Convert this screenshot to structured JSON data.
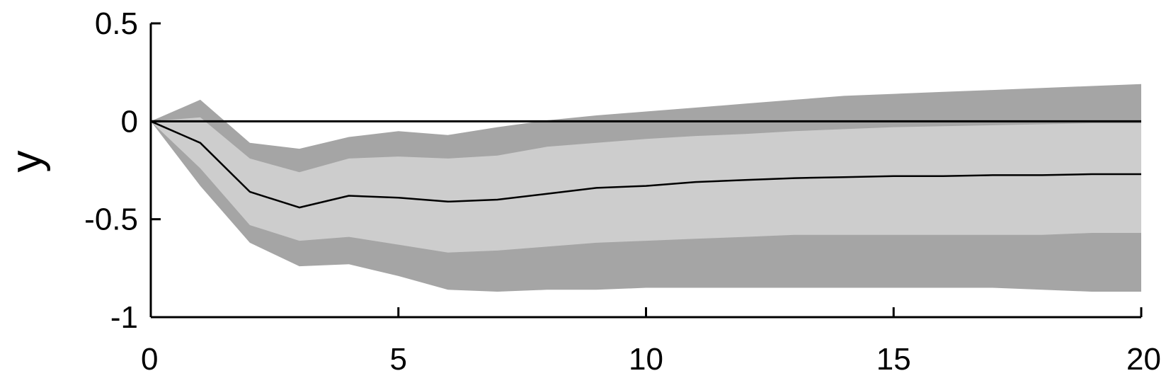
{
  "chart_data": {
    "type": "area",
    "title": "",
    "xlabel": "",
    "ylabel": "y",
    "xlim": [
      0,
      20
    ],
    "ylim": [
      -1,
      0.5
    ],
    "xticks": [
      0,
      5,
      10,
      15,
      20
    ],
    "yticks": [
      0.5,
      0,
      -0.5,
      -1
    ],
    "xtick_labels": [
      "0",
      "5",
      "10",
      "15",
      "20"
    ],
    "ytick_labels": [
      "0.5",
      "0",
      "-0.5",
      "-1"
    ],
    "grid": false,
    "legend": "none",
    "x": [
      0,
      1,
      2,
      3,
      4,
      5,
      6,
      7,
      8,
      9,
      10,
      11,
      12,
      13,
      14,
      15,
      16,
      17,
      18,
      19,
      20
    ],
    "series": [
      {
        "role": "median",
        "values": [
          0,
          -0.11,
          -0.36,
          -0.44,
          -0.38,
          -0.39,
          -0.41,
          -0.4,
          -0.37,
          -0.34,
          -0.33,
          -0.31,
          -0.3,
          -0.29,
          -0.285,
          -0.28,
          -0.28,
          -0.275,
          -0.275,
          -0.27,
          -0.27
        ]
      },
      {
        "role": "inner-band-upper",
        "values": [
          0,
          0.02,
          -0.19,
          -0.26,
          -0.19,
          -0.18,
          -0.19,
          -0.175,
          -0.13,
          -0.11,
          -0.09,
          -0.075,
          -0.065,
          -0.05,
          -0.04,
          -0.03,
          -0.025,
          -0.02,
          -0.015,
          -0.01,
          -0.01
        ]
      },
      {
        "role": "inner-band-lower",
        "values": [
          0,
          -0.24,
          -0.53,
          -0.61,
          -0.59,
          -0.63,
          -0.67,
          -0.66,
          -0.64,
          -0.62,
          -0.61,
          -0.6,
          -0.59,
          -0.58,
          -0.58,
          -0.58,
          -0.58,
          -0.58,
          -0.58,
          -0.57,
          -0.57
        ]
      },
      {
        "role": "outer-band-upper",
        "values": [
          0,
          0.11,
          -0.11,
          -0.14,
          -0.08,
          -0.05,
          -0.07,
          -0.03,
          0.005,
          0.03,
          0.05,
          0.07,
          0.09,
          0.11,
          0.13,
          0.14,
          0.15,
          0.16,
          0.17,
          0.18,
          0.19
        ]
      },
      {
        "role": "outer-band-lower",
        "values": [
          0,
          -0.33,
          -0.62,
          -0.74,
          -0.73,
          -0.79,
          -0.86,
          -0.87,
          -0.86,
          -0.86,
          -0.85,
          -0.85,
          -0.85,
          -0.85,
          -0.85,
          -0.85,
          -0.85,
          -0.85,
          -0.86,
          -0.87,
          -0.87
        ]
      }
    ],
    "reference_line": 0,
    "colors": {
      "outer_band": "#a5a5a5",
      "inner_band": "#cdcdcd",
      "median_line": "#000000",
      "zero_line": "#000000",
      "axes": "#000000"
    }
  }
}
